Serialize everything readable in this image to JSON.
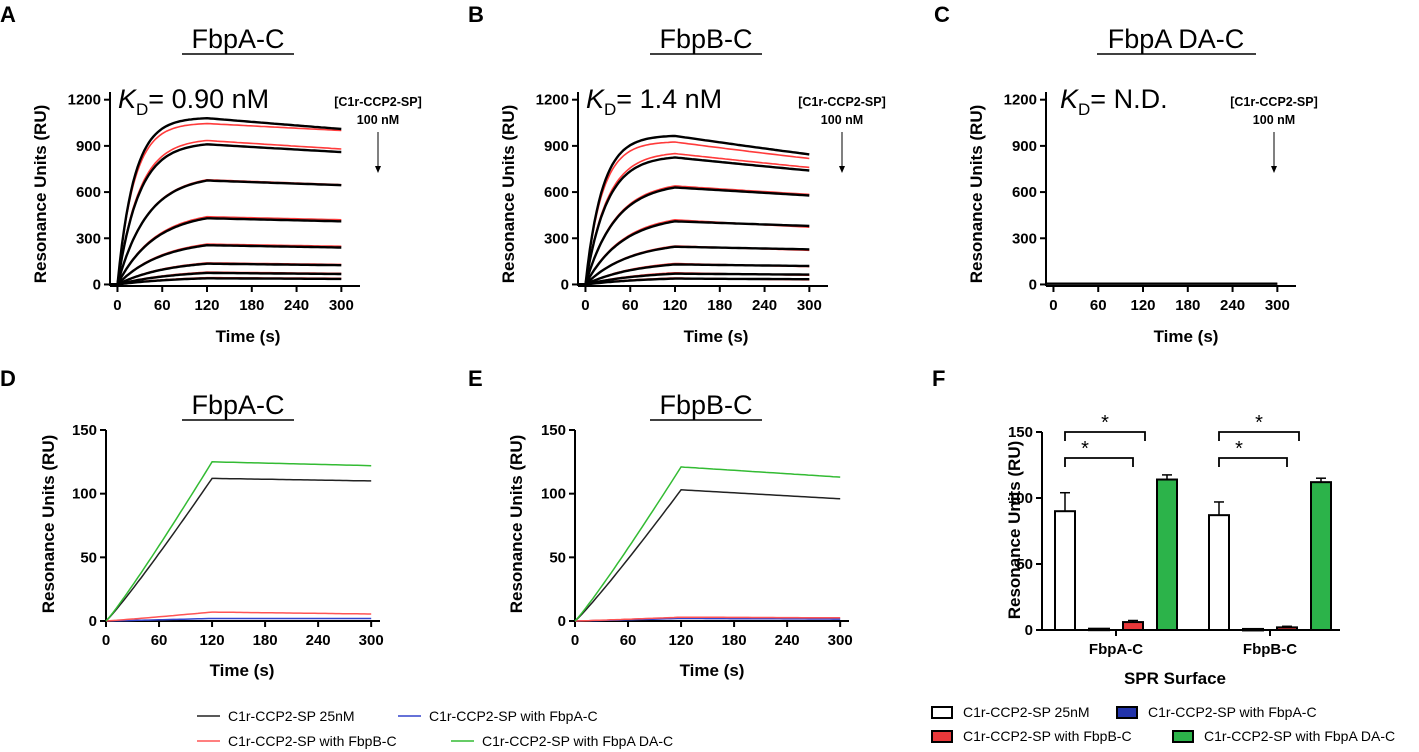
{
  "colors": {
    "fit_black": "#000000",
    "data_red": "#ff3b3b",
    "black_trace": "#222222",
    "blue_trace": "#3344cc",
    "red_trace": "#ff5555",
    "green_trace": "#33bb33",
    "bar_white": "#ffffff",
    "bar_blue": "#2233aa",
    "bar_red": "#e8383a",
    "bar_green": "#2cb34a"
  },
  "chart_data": [
    {
      "panel": "A",
      "type": "line",
      "title": "FbpA-C",
      "kd_prefix": "K",
      "kd_sub": "D",
      "kd_value": "= 0.90 nM",
      "conc_label": "[C1r-CCP2-SP]",
      "conc_value": "100 nM",
      "xlabel": "Time (s)",
      "ylabel": "Resonance Units (RU)",
      "xlim": [
        -10,
        325
      ],
      "ylim": [
        -10,
        1250
      ],
      "xticks": [
        0,
        60,
        120,
        180,
        240,
        300
      ],
      "yticks": [
        0,
        300,
        600,
        900,
        1200
      ],
      "fit_plateaus": [
        1080,
        910,
        675,
        430,
        255,
        135,
        75,
        40
      ],
      "fit_ends": [
        1010,
        860,
        645,
        410,
        240,
        125,
        68,
        36
      ],
      "red_plateaus": [
        1045,
        935,
        680,
        440,
        262,
        140,
        80,
        44
      ],
      "red_ends": [
        1000,
        880,
        648,
        420,
        248,
        130,
        72,
        40
      ]
    },
    {
      "panel": "B",
      "type": "line",
      "title": "FbpB-C",
      "kd_prefix": "K",
      "kd_sub": "D",
      "kd_value": "= 1.4 nM",
      "conc_label": "[C1r-CCP2-SP]",
      "conc_value": "100 nM",
      "xlabel": "Time (s)",
      "ylabel": "Resonance Units (RU)",
      "xlim": [
        -10,
        325
      ],
      "ylim": [
        -10,
        1250
      ],
      "xticks": [
        0,
        60,
        120,
        180,
        240,
        300
      ],
      "yticks": [
        0,
        300,
        600,
        900,
        1200
      ],
      "fit_plateaus": [
        965,
        825,
        630,
        410,
        245,
        130,
        70,
        38
      ],
      "fit_ends": [
        845,
        740,
        578,
        380,
        228,
        120,
        64,
        34
      ],
      "red_plateaus": [
        925,
        850,
        640,
        420,
        250,
        136,
        76,
        42
      ],
      "red_ends": [
        818,
        760,
        585,
        372,
        222,
        116,
        60,
        30
      ]
    },
    {
      "panel": "C",
      "type": "line",
      "title": "FbpA DA-C",
      "kd_prefix": "K",
      "kd_sub": "D",
      "kd_value": "= N.D.",
      "conc_label": "[C1r-CCP2-SP]",
      "conc_value": "100 nM",
      "xlabel": "Time (s)",
      "ylabel": "Resonance Units (RU)",
      "xlim": [
        -10,
        325
      ],
      "ylim": [
        -10,
        1250
      ],
      "xticks": [
        0,
        60,
        120,
        180,
        240,
        300
      ],
      "yticks": [
        0,
        300,
        600,
        900,
        1200
      ],
      "flat_value": 5
    },
    {
      "panel": "D",
      "type": "line",
      "title": "FbpA-C",
      "xlabel": "Time (s)",
      "ylabel": "Resonance Units (RU)",
      "xlim": [
        0,
        310
      ],
      "ylim": [
        0,
        150
      ],
      "xticks": [
        0,
        60,
        120,
        180,
        240,
        300
      ],
      "yticks": [
        0,
        50,
        100,
        150
      ],
      "series": [
        {
          "name": "C1r-CCP2-SP 25nM",
          "peak": 112,
          "end": 110
        },
        {
          "name": "C1r-CCP2-SP with FbpA-C",
          "peak": 2,
          "end": 2
        },
        {
          "name": "C1r-CCP2-SP with FbpB-C",
          "peak": 7,
          "end": 5.5
        },
        {
          "name": "C1r-CCP2-SP with FbpA DA-C",
          "peak": 125,
          "end": 122
        }
      ]
    },
    {
      "panel": "E",
      "type": "line",
      "title": "FbpB-C",
      "xlabel": "Time (s)",
      "ylabel": "Resonance Units (RU)",
      "xlim": [
        0,
        310
      ],
      "ylim": [
        0,
        150
      ],
      "xticks": [
        0,
        60,
        120,
        180,
        240,
        300
      ],
      "yticks": [
        0,
        50,
        100,
        150
      ],
      "series": [
        {
          "name": "C1r-CCP2-SP 25nM",
          "peak": 103,
          "end": 96
        },
        {
          "name": "C1r-CCP2-SP with FbpA-C",
          "peak": 2,
          "end": 1.5
        },
        {
          "name": "C1r-CCP2-SP with FbpB-C",
          "peak": 3,
          "end": 2.5
        },
        {
          "name": "C1r-CCP2-SP with FbpA DA-C",
          "peak": 121,
          "end": 113
        }
      ]
    },
    {
      "panel": "F",
      "type": "bar",
      "xlabel": "SPR Surface",
      "ylabel": "Resonance Units (RU)",
      "ylim": [
        0,
        150
      ],
      "yticks": [
        0,
        50,
        100,
        150
      ],
      "categories": [
        "FbpA-C",
        "FbpB-C"
      ],
      "series": [
        {
          "name": "C1r-CCP2-SP 25nM",
          "values": [
            90,
            87
          ],
          "errors": [
            14,
            10
          ]
        },
        {
          "name": "C1r-CCP2-SP with FbpA-C",
          "values": [
            1,
            0.8
          ],
          "errors": [
            0.6,
            0.5
          ]
        },
        {
          "name": "C1r-CCP2-SP with FbpB-C",
          "values": [
            6,
            2
          ],
          "errors": [
            1.2,
            0.8
          ]
        },
        {
          "name": "C1r-CCP2-SP with FbpA DA-C",
          "values": [
            114,
            112
          ],
          "errors": [
            3.5,
            3
          ]
        }
      ],
      "significance": "*"
    }
  ],
  "legend_lines": {
    "items": [
      "C1r-CCP2-SP 25nM",
      "C1r-CCP2-SP with FbpA-C",
      "C1r-CCP2-SP with FbpB-C",
      "C1r-CCP2-SP with FbpA DA-C"
    ]
  },
  "legend_bars": {
    "items": [
      "C1r-CCP2-SP 25nM",
      "C1r-CCP2-SP with FbpA-C",
      "C1r-CCP2-SP with FbpB-C",
      "C1r-CCP2-SP with FbpA DA-C"
    ]
  }
}
